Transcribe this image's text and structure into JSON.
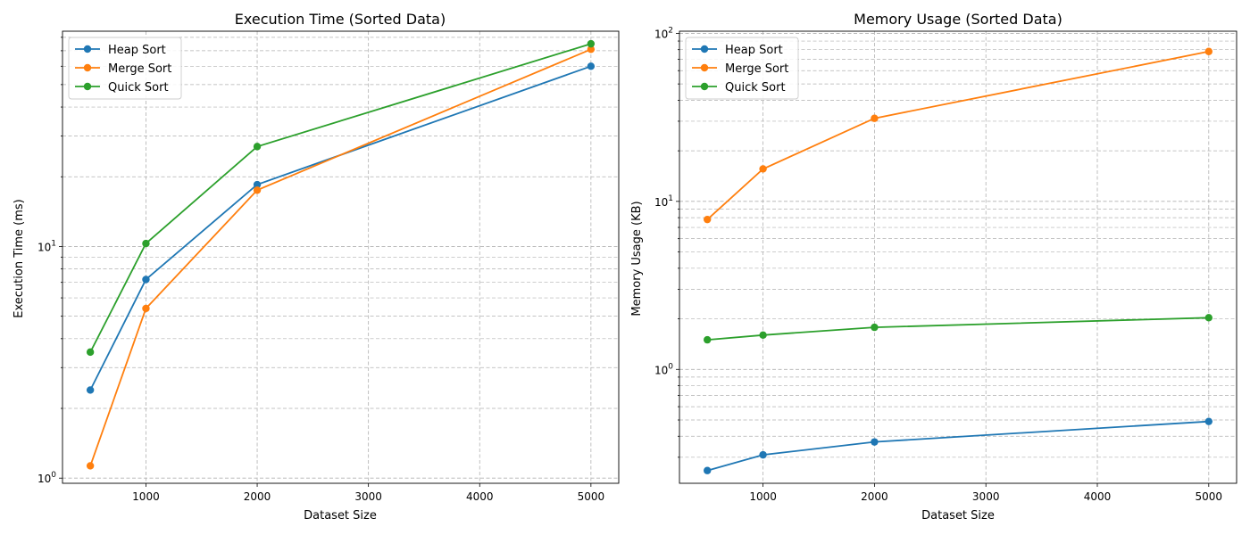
{
  "chart_data": [
    {
      "type": "line",
      "title": "Execution Time (Sorted Data)",
      "xlabel": "Dataset Size",
      "ylabel": "Execution Time (ms)",
      "xscale": "linear",
      "yscale": "log",
      "x": [
        500,
        1000,
        2000,
        5000
      ],
      "xlim": [
        250,
        5250
      ],
      "ylim": [
        0.95,
        85
      ],
      "xticks": [
        1000,
        2000,
        3000,
        4000,
        5000
      ],
      "yticks": [
        1,
        10
      ],
      "ytick_labels": [
        "10^0",
        "10^1"
      ],
      "grid": true,
      "legend": "top-left",
      "series": [
        {
          "name": "Heap Sort",
          "color": "#1f77b4",
          "values": [
            2.4,
            7.2,
            18.5,
            60
          ]
        },
        {
          "name": "Merge Sort",
          "color": "#ff7f0e",
          "values": [
            1.13,
            5.4,
            17.5,
            71
          ]
        },
        {
          "name": "Quick Sort",
          "color": "#2ca02c",
          "values": [
            3.5,
            10.3,
            27,
            75
          ]
        }
      ]
    },
    {
      "type": "line",
      "title": "Memory Usage (Sorted Data)",
      "xlabel": "Dataset Size",
      "ylabel": "Memory Usage (KB)",
      "xscale": "linear",
      "yscale": "log",
      "x": [
        500,
        1000,
        2000,
        5000
      ],
      "xlim": [
        250,
        5250
      ],
      "ylim": [
        0.21,
        103
      ],
      "xticks": [
        1000,
        2000,
        3000,
        4000,
        5000
      ],
      "yticks": [
        1,
        10,
        100
      ],
      "ytick_labels": [
        "10^0",
        "10^1",
        "10^2"
      ],
      "grid": true,
      "legend": "top-left",
      "series": [
        {
          "name": "Heap Sort",
          "color": "#1f77b4",
          "values": [
            0.25,
            0.31,
            0.37,
            0.49
          ]
        },
        {
          "name": "Merge Sort",
          "color": "#ff7f0e",
          "values": [
            7.8,
            15.6,
            31.2,
            78
          ]
        },
        {
          "name": "Quick Sort",
          "color": "#2ca02c",
          "values": [
            1.5,
            1.6,
            1.78,
            2.03
          ]
        }
      ]
    }
  ]
}
